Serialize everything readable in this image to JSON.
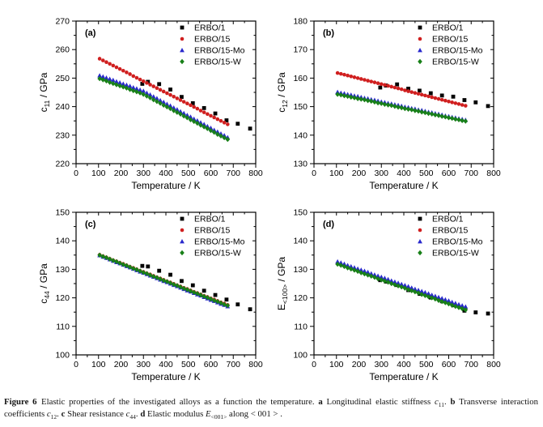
{
  "figure": {
    "caption_segments": [
      {
        "t": "Figure 6 ",
        "b": 1
      },
      {
        "t": "Elastic properties of the investigated alloys as a function the temperature. "
      },
      {
        "t": "a",
        "b": 1
      },
      {
        "t": " Longitudinal elastic stiffness "
      },
      {
        "t": "c",
        "i": 1
      },
      {
        "t": "11",
        "sub": 1
      },
      {
        "t": ". "
      },
      {
        "t": "b",
        "b": 1
      },
      {
        "t": " Transverse interaction coefficients "
      },
      {
        "t": "c",
        "i": 1
      },
      {
        "t": "12",
        "sub": 1
      },
      {
        "t": ". "
      },
      {
        "t": "c",
        "b": 1
      },
      {
        "t": " Shear resistance "
      },
      {
        "t": "c",
        "i": 1
      },
      {
        "t": "44",
        "sub": 1
      },
      {
        "t": ". "
      },
      {
        "t": "d",
        "b": 1
      },
      {
        "t": " Elastic modulus "
      },
      {
        "t": "E",
        "i": 1
      },
      {
        "t": "<001>",
        "sub": 1
      },
      {
        "t": " along < 001 > ."
      }
    ]
  },
  "chart_data": [
    {
      "id": "a",
      "type": "scatter",
      "panel_label": "(a)",
      "xlabel": "Temperature / K",
      "ylabel": {
        "pre": "c",
        "sub": "11",
        "post": " / GPa"
      },
      "xlim": [
        0,
        800
      ],
      "ylim": [
        220,
        270
      ],
      "xticks": [
        0,
        100,
        200,
        300,
        400,
        500,
        600,
        700,
        800
      ],
      "yticks": [
        220,
        230,
        240,
        250,
        260,
        270
      ],
      "x_minor": 50,
      "y_minor": 5,
      "legend_position": "top-right",
      "series": [
        {
          "name": "ERBO/1",
          "marker": "square",
          "color": "#000000",
          "points": [
            [
              295,
              248.0
            ],
            [
              320,
              248.7
            ],
            [
              370,
              247.9
            ],
            [
              420,
              246.0
            ],
            [
              470,
              243.4
            ],
            [
              520,
              241.2
            ],
            [
              570,
              239.5
            ],
            [
              620,
              237.6
            ],
            [
              670,
              235.2
            ],
            [
              720,
              234.0
            ],
            [
              775,
              232.3
            ]
          ]
        },
        {
          "name": "ERBO/15",
          "marker": "circle",
          "color": "#d01f1f",
          "x_start": 105,
          "x_step": 15,
          "values": [
            256.8,
            256.2,
            255.6,
            255.0,
            254.4,
            253.8,
            253.2,
            252.6,
            252.0,
            251.4,
            250.7,
            250.1,
            249.5,
            248.9,
            248.3,
            247.7,
            247.1,
            246.5,
            245.9,
            245.3,
            244.7,
            244.1,
            243.5,
            242.9,
            242.3,
            241.7,
            241.1,
            240.5,
            239.9,
            239.3,
            238.6,
            238.0,
            237.4,
            236.8,
            236.2,
            235.6,
            235.0,
            234.4,
            233.8
          ]
        },
        {
          "name": "ERBO/15-Mo",
          "marker": "triangle",
          "color": "#2828cc",
          "x_start": 105,
          "x_step": 15,
          "values": [
            250.9,
            250.5,
            250.1,
            249.7,
            249.3,
            248.8,
            248.4,
            248.0,
            247.6,
            247.2,
            246.7,
            246.3,
            245.9,
            245.5,
            244.8,
            244.2,
            243.5,
            242.9,
            242.2,
            241.6,
            240.9,
            240.3,
            239.6,
            239.0,
            238.3,
            237.7,
            237.0,
            236.4,
            235.7,
            235.1,
            234.4,
            233.8,
            233.1,
            232.5,
            231.8,
            231.2,
            230.5,
            229.9,
            229.2
          ]
        },
        {
          "name": "ERBO/15-W",
          "marker": "diamond",
          "color": "#188018",
          "x_start": 105,
          "x_step": 15,
          "values": [
            249.8,
            249.4,
            249.0,
            248.5,
            248.1,
            247.7,
            247.3,
            246.9,
            246.5,
            246.0,
            245.6,
            245.2,
            244.8,
            244.3,
            243.7,
            243.1,
            242.4,
            241.8,
            241.2,
            240.5,
            239.9,
            239.3,
            238.6,
            238.0,
            237.4,
            236.7,
            236.1,
            235.4,
            234.8,
            234.2,
            233.5,
            232.9,
            232.3,
            231.6,
            231.0,
            230.3,
            229.7,
            229.1,
            228.5
          ]
        }
      ]
    },
    {
      "id": "b",
      "type": "scatter",
      "panel_label": "(b)",
      "xlabel": "Temperature / K",
      "ylabel": {
        "pre": "c",
        "sub": "12",
        "post": " / GPa"
      },
      "xlim": [
        0,
        800
      ],
      "ylim": [
        130,
        180
      ],
      "xticks": [
        0,
        100,
        200,
        300,
        400,
        500,
        600,
        700,
        800
      ],
      "yticks": [
        130,
        140,
        150,
        160,
        170,
        180
      ],
      "x_minor": 50,
      "y_minor": 5,
      "legend_position": "top-right",
      "series": [
        {
          "name": "ERBO/1",
          "marker": "square",
          "color": "#000000",
          "points": [
            [
              295,
              156.7
            ],
            [
              320,
              157.4
            ],
            [
              370,
              157.8
            ],
            [
              420,
              156.3
            ],
            [
              470,
              155.6
            ],
            [
              520,
              154.7
            ],
            [
              570,
              153.9
            ],
            [
              620,
              153.5
            ],
            [
              670,
              152.3
            ],
            [
              720,
              151.5
            ],
            [
              775,
              150.2
            ]
          ]
        },
        {
          "name": "ERBO/15",
          "marker": "circle",
          "color": "#d01f1f",
          "x_start": 105,
          "x_step": 15,
          "values": [
            161.8,
            161.5,
            161.2,
            160.9,
            160.6,
            160.3,
            160.0,
            159.7,
            159.4,
            159.1,
            158.8,
            158.5,
            158.2,
            157.9,
            157.6,
            157.3,
            157.0,
            156.7,
            156.4,
            156.1,
            155.7,
            155.4,
            155.1,
            154.8,
            154.5,
            154.2,
            153.9,
            153.6,
            153.3,
            153.0,
            152.7,
            152.4,
            152.1,
            151.8,
            151.5,
            151.2,
            150.9,
            150.6,
            150.3
          ]
        },
        {
          "name": "ERBO/15-Mo",
          "marker": "triangle",
          "color": "#2828cc",
          "x_start": 105,
          "x_step": 15,
          "values": [
            155.1,
            154.8,
            154.6,
            154.3,
            154.1,
            153.8,
            153.6,
            153.3,
            153.0,
            152.8,
            152.5,
            152.3,
            152.0,
            151.7,
            151.5,
            151.2,
            151.0,
            150.7,
            150.5,
            150.2,
            149.9,
            149.7,
            149.4,
            149.2,
            148.9,
            148.7,
            148.4,
            148.1,
            147.9,
            147.6,
            147.4,
            147.1,
            146.8,
            146.6,
            146.3,
            146.1,
            145.8,
            145.6,
            145.3
          ]
        },
        {
          "name": "ERBO/15-W",
          "marker": "diamond",
          "color": "#188018",
          "x_start": 105,
          "x_step": 15,
          "values": [
            154.3,
            154.1,
            153.8,
            153.6,
            153.3,
            153.1,
            152.8,
            152.6,
            152.4,
            152.1,
            151.9,
            151.6,
            151.3,
            151.1,
            150.8,
            150.6,
            150.4,
            150.1,
            149.8,
            149.6,
            149.3,
            149.1,
            148.9,
            148.6,
            148.4,
            148.1,
            147.9,
            147.6,
            147.4,
            147.1,
            146.9,
            146.6,
            146.4,
            146.1,
            145.9,
            145.6,
            145.4,
            145.1,
            144.9
          ]
        }
      ]
    },
    {
      "id": "c",
      "type": "scatter",
      "panel_label": "(c)",
      "xlabel": "Temperature / K",
      "ylabel": {
        "pre": "c",
        "sub": "44",
        "post": " / GPa"
      },
      "xlim": [
        0,
        800
      ],
      "ylim": [
        100,
        150
      ],
      "xticks": [
        0,
        100,
        200,
        300,
        400,
        500,
        600,
        700,
        800
      ],
      "yticks": [
        100,
        110,
        120,
        130,
        140,
        150
      ],
      "x_minor": 50,
      "y_minor": 5,
      "legend_position": "top-right",
      "series": [
        {
          "name": "ERBO/1",
          "marker": "square",
          "color": "#000000",
          "points": [
            [
              295,
              131.2
            ],
            [
              320,
              131.0
            ],
            [
              370,
              129.5
            ],
            [
              420,
              128.1
            ],
            [
              470,
              125.9
            ],
            [
              520,
              124.4
            ],
            [
              570,
              122.5
            ],
            [
              620,
              121.0
            ],
            [
              670,
              119.4
            ],
            [
              720,
              117.7
            ],
            [
              775,
              116.0
            ]
          ]
        },
        {
          "name": "ERBO/15",
          "marker": "circle",
          "color": "#d01f1f",
          "x_start": 105,
          "x_step": 15,
          "values": [
            135.1,
            134.6,
            134.2,
            133.7,
            133.2,
            132.8,
            132.3,
            131.9,
            131.4,
            130.9,
            130.5,
            130.0,
            129.5,
            129.1,
            128.6,
            128.2,
            127.7,
            127.2,
            126.8,
            126.3,
            125.8,
            125.4,
            124.9,
            124.4,
            124.0,
            123.5,
            123.1,
            122.6,
            122.1,
            121.7,
            121.2,
            120.7,
            120.3,
            119.8,
            119.4,
            118.9,
            118.4,
            118.0,
            117.5
          ]
        },
        {
          "name": "ERBO/15-Mo",
          "marker": "triangle",
          "color": "#2828cc",
          "x_start": 105,
          "x_step": 15,
          "values": [
            134.9,
            134.4,
            134.0,
            133.5,
            133.0,
            132.5,
            132.1,
            131.6,
            131.1,
            130.7,
            130.2,
            129.7,
            129.2,
            128.8,
            128.3,
            127.8,
            127.4,
            126.9,
            126.4,
            125.9,
            125.5,
            125.0,
            124.5,
            124.1,
            123.6,
            123.1,
            122.6,
            122.2,
            121.7,
            121.2,
            120.8,
            120.3,
            119.8,
            119.3,
            118.9,
            118.4,
            117.9,
            117.5,
            117.0
          ]
        },
        {
          "name": "ERBO/15-W",
          "marker": "diamond",
          "color": "#188018",
          "x_start": 105,
          "x_step": 15,
          "values": [
            135.0,
            134.5,
            134.1,
            133.6,
            133.1,
            132.7,
            132.2,
            131.7,
            131.3,
            130.8,
            130.3,
            129.9,
            129.4,
            128.9,
            128.5,
            128.0,
            127.5,
            127.1,
            126.6,
            126.1,
            125.7,
            125.2,
            124.7,
            124.3,
            123.8,
            123.3,
            122.9,
            122.4,
            121.9,
            121.5,
            121.0,
            120.5,
            120.1,
            119.6,
            119.1,
            118.7,
            118.2,
            117.7,
            117.3
          ]
        }
      ]
    },
    {
      "id": "d",
      "type": "scatter",
      "panel_label": "(d)",
      "xlabel": "Temperature / K",
      "ylabel": {
        "pre": "E",
        "sub": "<100>",
        "post": " / GPa"
      },
      "xlim": [
        0,
        800
      ],
      "ylim": [
        100,
        150
      ],
      "xticks": [
        0,
        100,
        200,
        300,
        400,
        500,
        600,
        700,
        800
      ],
      "yticks": [
        100,
        110,
        120,
        130,
        140,
        150
      ],
      "x_minor": 50,
      "y_minor": 5,
      "legend_position": "top-right",
      "series": [
        {
          "name": "ERBO/1",
          "marker": "square",
          "color": "#000000",
          "points": [
            [
              295,
              126.2
            ],
            [
              320,
              125.7
            ],
            [
              370,
              124.5
            ],
            [
              420,
              122.7
            ],
            [
              470,
              121.4
            ],
            [
              520,
              120.1
            ],
            [
              570,
              118.8
            ],
            [
              620,
              117.4
            ],
            [
              670,
              115.5
            ],
            [
              720,
              114.9
            ],
            [
              775,
              114.5
            ]
          ]
        },
        {
          "name": "ERBO/15",
          "marker": "circle",
          "color": "#d01f1f",
          "x_start": 105,
          "x_step": 15,
          "values": [
            132.0,
            131.6,
            131.2,
            130.8,
            130.3,
            129.9,
            129.5,
            129.1,
            128.7,
            128.3,
            127.8,
            127.4,
            127.0,
            126.6,
            126.2,
            125.8,
            125.3,
            124.9,
            124.5,
            124.1,
            123.7,
            123.3,
            122.8,
            122.4,
            122.0,
            121.6,
            121.2,
            120.8,
            120.3,
            119.9,
            119.5,
            119.1,
            118.7,
            118.3,
            117.8,
            117.4,
            117.0,
            116.6,
            116.2
          ]
        },
        {
          "name": "ERBO/15-Mo",
          "marker": "triangle",
          "color": "#2828cc",
          "x_start": 105,
          "x_step": 15,
          "values": [
            132.7,
            132.3,
            131.9,
            131.4,
            131.0,
            130.6,
            130.2,
            129.8,
            129.4,
            129.0,
            128.5,
            128.1,
            127.7,
            127.3,
            126.9,
            126.5,
            126.0,
            125.6,
            125.2,
            124.8,
            124.4,
            124.0,
            123.5,
            123.1,
            122.7,
            122.3,
            121.9,
            121.5,
            121.0,
            120.6,
            120.2,
            119.8,
            119.4,
            119.0,
            118.5,
            118.1,
            117.7,
            117.3,
            116.9
          ]
        },
        {
          "name": "ERBO/15-W",
          "marker": "diamond",
          "color": "#188018",
          "x_start": 105,
          "x_step": 15,
          "values": [
            131.8,
            131.4,
            131.0,
            130.5,
            130.1,
            129.7,
            129.3,
            128.8,
            128.4,
            128.0,
            127.6,
            127.2,
            126.7,
            126.3,
            125.9,
            125.5,
            125.0,
            124.6,
            124.2,
            123.8,
            123.4,
            122.9,
            122.5,
            122.1,
            121.7,
            121.2,
            120.8,
            120.4,
            120.0,
            119.6,
            119.1,
            118.7,
            118.3,
            117.9,
            117.4,
            117.0,
            116.6,
            116.2,
            115.8
          ]
        }
      ]
    }
  ]
}
